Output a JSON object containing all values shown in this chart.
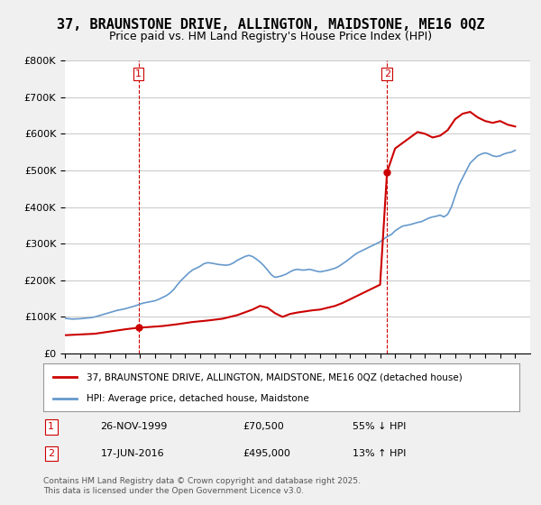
{
  "title": "37, BRAUNSTONE DRIVE, ALLINGTON, MAIDSTONE, ME16 0QZ",
  "subtitle": "Price paid vs. HM Land Registry's House Price Index (HPI)",
  "ylabel_ticks": [
    "£0",
    "£100K",
    "£200K",
    "£300K",
    "£400K",
    "£500K",
    "£600K",
    "£700K",
    "£800K"
  ],
  "ylim": [
    0,
    800000
  ],
  "xlim_start": 1995,
  "xlim_end": 2026,
  "background_color": "#f0f0f0",
  "plot_background": "#ffffff",
  "grid_color": "#cccccc",
  "hpi_color": "#6699cc",
  "price_color": "#cc0000",
  "transaction1_date": "26-NOV-1999",
  "transaction1_price": 70500,
  "transaction1_pct": "55% ↓ HPI",
  "transaction1_year": 1999.9,
  "transaction2_date": "17-JUN-2016",
  "transaction2_price": 495000,
  "transaction2_pct": "13% ↑ HPI",
  "transaction2_year": 2016.46,
  "legend_line1": "37, BRAUNSTONE DRIVE, ALLINGTON, MAIDSTONE, ME16 0QZ (detached house)",
  "legend_line2": "HPI: Average price, detached house, Maidstone",
  "footer": "Contains HM Land Registry data © Crown copyright and database right 2025.\nThis data is licensed under the Open Government Licence v3.0.",
  "hpi_data_x": [
    1995.0,
    1995.25,
    1995.5,
    1995.75,
    1996.0,
    1996.25,
    1996.5,
    1996.75,
    1997.0,
    1997.25,
    1997.5,
    1997.75,
    1998.0,
    1998.25,
    1998.5,
    1998.75,
    1999.0,
    1999.25,
    1999.5,
    1999.75,
    2000.0,
    2000.25,
    2000.5,
    2000.75,
    2001.0,
    2001.25,
    2001.5,
    2001.75,
    2002.0,
    2002.25,
    2002.5,
    2002.75,
    2003.0,
    2003.25,
    2003.5,
    2003.75,
    2004.0,
    2004.25,
    2004.5,
    2004.75,
    2005.0,
    2005.25,
    2005.5,
    2005.75,
    2006.0,
    2006.25,
    2006.5,
    2006.75,
    2007.0,
    2007.25,
    2007.5,
    2007.75,
    2008.0,
    2008.25,
    2008.5,
    2008.75,
    2009.0,
    2009.25,
    2009.5,
    2009.75,
    2010.0,
    2010.25,
    2010.5,
    2010.75,
    2011.0,
    2011.25,
    2011.5,
    2011.75,
    2012.0,
    2012.25,
    2012.5,
    2012.75,
    2013.0,
    2013.25,
    2013.5,
    2013.75,
    2014.0,
    2014.25,
    2014.5,
    2014.75,
    2015.0,
    2015.25,
    2015.5,
    2015.75,
    2016.0,
    2016.25,
    2016.5,
    2016.75,
    2017.0,
    2017.25,
    2017.5,
    2017.75,
    2018.0,
    2018.25,
    2018.5,
    2018.75,
    2019.0,
    2019.25,
    2019.5,
    2019.75,
    2020.0,
    2020.25,
    2020.5,
    2020.75,
    2021.0,
    2021.25,
    2021.5,
    2021.75,
    2022.0,
    2022.25,
    2022.5,
    2022.75,
    2023.0,
    2023.25,
    2023.5,
    2023.75,
    2024.0,
    2024.25,
    2024.5,
    2024.75,
    2025.0
  ],
  "hpi_data_y": [
    96000,
    95000,
    94000,
    94500,
    95000,
    96000,
    97000,
    98000,
    100000,
    103000,
    106000,
    109000,
    112000,
    115000,
    118000,
    120000,
    122000,
    125000,
    128000,
    131000,
    135000,
    138000,
    140000,
    142000,
    144000,
    148000,
    153000,
    158000,
    165000,
    175000,
    188000,
    200000,
    210000,
    220000,
    228000,
    233000,
    238000,
    245000,
    248000,
    247000,
    245000,
    243000,
    242000,
    241000,
    243000,
    248000,
    255000,
    260000,
    265000,
    268000,
    265000,
    258000,
    250000,
    240000,
    228000,
    215000,
    208000,
    210000,
    213000,
    217000,
    223000,
    228000,
    230000,
    228000,
    228000,
    230000,
    228000,
    225000,
    223000,
    225000,
    227000,
    230000,
    233000,
    238000,
    245000,
    252000,
    260000,
    268000,
    275000,
    280000,
    285000,
    290000,
    295000,
    300000,
    305000,
    313000,
    320000,
    325000,
    335000,
    342000,
    348000,
    350000,
    352000,
    355000,
    358000,
    360000,
    365000,
    370000,
    373000,
    375000,
    378000,
    373000,
    380000,
    400000,
    430000,
    460000,
    480000,
    500000,
    520000,
    530000,
    540000,
    545000,
    548000,
    545000,
    540000,
    538000,
    540000,
    545000,
    548000,
    550000,
    555000
  ],
  "price_data_x": [
    1995.0,
    1999.9,
    2016.46,
    2025.0
  ],
  "price_data_y": [
    50000,
    70500,
    495000,
    620000
  ],
  "vline1_x": 1999.9,
  "vline2_x": 2016.46,
  "marker1_y": 70500,
  "marker2_y": 495000
}
